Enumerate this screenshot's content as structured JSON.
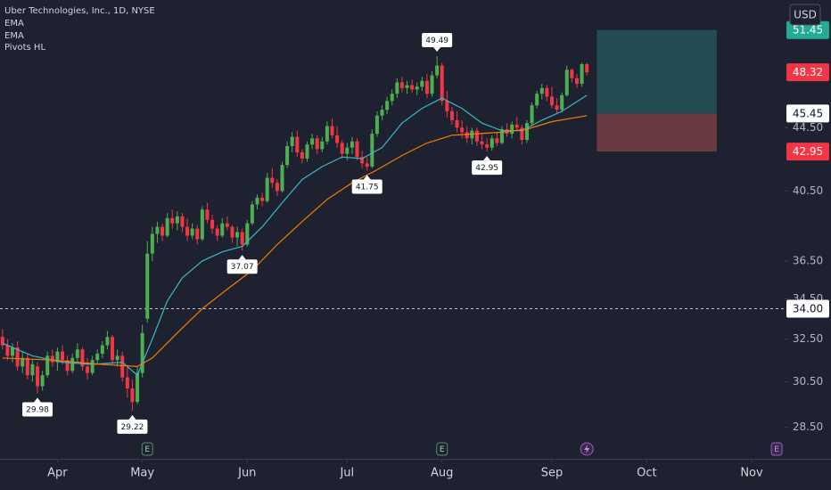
{
  "chart_data": {
    "type": "candlestick",
    "title": "Uber Technologies, Inc., 1D, NYSE",
    "currency": "USD",
    "log_scale": true,
    "grid": false,
    "ylim": [
      27.2,
      53.8
    ],
    "xlim": [
      -0.5,
      156.6
    ],
    "yticks": [
      {
        "value": 28.5,
        "label": "28.50"
      },
      {
        "value": 30.5,
        "label": "30.50"
      },
      {
        "value": 32.5,
        "label": "32.50"
      },
      {
        "value": 34.5,
        "label": "34.50"
      },
      {
        "value": 36.5,
        "label": "36.50"
      },
      {
        "value": 40.5,
        "label": "40.50"
      },
      {
        "value": 44.5,
        "label": "44.50"
      }
    ],
    "xticks": [
      {
        "value": 11,
        "label": "Apr"
      },
      {
        "value": 28,
        "label": "May"
      },
      {
        "value": 49,
        "label": "Jun"
      },
      {
        "value": 69,
        "label": "Jul"
      },
      {
        "value": 88,
        "label": "Aug"
      },
      {
        "value": 110,
        "label": "Sep"
      },
      {
        "value": 129,
        "label": "Oct"
      },
      {
        "value": 150,
        "label": "Nov"
      }
    ],
    "up_color": "#4caf50",
    "down_color": "#f23645",
    "ohlc": [
      [
        32.6,
        33.0,
        32.0,
        32.2
      ],
      [
        32.2,
        32.5,
        31.5,
        31.7
      ],
      [
        31.7,
        32.3,
        31.4,
        32.1
      ],
      [
        32.1,
        32.4,
        31.0,
        31.2
      ],
      [
        31.2,
        31.9,
        30.9,
        31.6
      ],
      [
        31.6,
        31.8,
        30.6,
        30.8
      ],
      [
        30.8,
        31.5,
        30.5,
        31.3
      ],
      [
        31.2,
        31.4,
        29.98,
        30.3
      ],
      [
        30.3,
        31.0,
        30.1,
        30.8
      ],
      [
        30.8,
        31.9,
        30.7,
        31.7
      ],
      [
        31.7,
        32.0,
        31.2,
        31.4
      ],
      [
        31.4,
        32.1,
        31.0,
        31.9
      ],
      [
        31.9,
        32.2,
        31.3,
        31.5
      ],
      [
        31.5,
        31.7,
        30.8,
        31.0
      ],
      [
        31.0,
        31.8,
        30.9,
        31.6
      ],
      [
        31.6,
        32.3,
        31.4,
        32.0
      ],
      [
        32.0,
        32.1,
        31.0,
        31.2
      ],
      [
        31.2,
        31.6,
        30.6,
        30.9
      ],
      [
        30.9,
        31.7,
        30.8,
        31.5
      ],
      [
        31.5,
        32.0,
        31.3,
        31.8
      ],
      [
        31.8,
        32.4,
        31.6,
        32.2
      ],
      [
        32.2,
        32.9,
        32.0,
        32.6
      ],
      [
        32.6,
        32.7,
        31.3,
        31.5
      ],
      [
        31.5,
        32.0,
        31.2,
        31.7
      ],
      [
        31.7,
        31.9,
        30.5,
        30.7
      ],
      [
        30.7,
        31.2,
        29.8,
        30.2
      ],
      [
        30.2,
        30.6,
        29.22,
        29.6
      ],
      [
        29.6,
        31.2,
        29.5,
        30.9
      ],
      [
        30.9,
        33.2,
        30.7,
        32.8
      ],
      [
        33.5,
        37.6,
        33.3,
        36.9
      ],
      [
        36.9,
        38.4,
        36.5,
        38.0
      ],
      [
        38.0,
        38.7,
        37.5,
        38.4
      ],
      [
        38.4,
        38.6,
        37.6,
        37.9
      ],
      [
        37.9,
        39.2,
        37.8,
        38.9
      ],
      [
        38.9,
        39.4,
        38.3,
        38.6
      ],
      [
        38.6,
        39.3,
        38.2,
        39.0
      ],
      [
        39.0,
        39.2,
        38.1,
        38.4
      ],
      [
        38.4,
        38.9,
        37.6,
        37.9
      ],
      [
        37.9,
        38.6,
        37.7,
        38.3
      ],
      [
        38.3,
        38.5,
        37.4,
        37.7
      ],
      [
        37.7,
        39.6,
        37.6,
        39.4
      ],
      [
        39.4,
        39.8,
        38.6,
        38.8
      ],
      [
        38.8,
        39.1,
        38.0,
        38.3
      ],
      [
        38.3,
        38.5,
        37.6,
        37.9
      ],
      [
        37.9,
        38.9,
        37.8,
        38.6
      ],
      [
        38.6,
        39.0,
        38.2,
        38.4
      ],
      [
        38.4,
        38.5,
        37.5,
        37.8
      ],
      [
        37.8,
        38.4,
        37.3,
        38.1
      ],
      [
        38.1,
        38.3,
        37.07,
        37.4
      ],
      [
        37.4,
        38.8,
        37.3,
        38.6
      ],
      [
        38.6,
        39.9,
        38.5,
        39.7
      ],
      [
        39.7,
        40.3,
        39.4,
        40.1
      ],
      [
        40.1,
        40.4,
        39.6,
        39.9
      ],
      [
        39.9,
        41.6,
        39.8,
        41.3
      ],
      [
        41.3,
        41.9,
        40.7,
        41.0
      ],
      [
        41.0,
        41.2,
        40.2,
        40.5
      ],
      [
        40.5,
        42.3,
        40.4,
        42.1
      ],
      [
        42.1,
        43.6,
        41.9,
        43.3
      ],
      [
        43.3,
        44.2,
        42.9,
        43.9
      ],
      [
        43.9,
        44.3,
        42.6,
        42.9
      ],
      [
        42.9,
        43.1,
        42.2,
        42.5
      ],
      [
        42.5,
        43.6,
        42.3,
        43.4
      ],
      [
        43.4,
        44.1,
        43.1,
        43.8
      ],
      [
        43.8,
        44.0,
        42.8,
        43.1
      ],
      [
        43.1,
        43.9,
        42.9,
        43.6
      ],
      [
        43.6,
        44.9,
        43.4,
        44.6
      ],
      [
        44.6,
        45.1,
        43.8,
        44.0
      ],
      [
        44.0,
        44.6,
        43.2,
        43.5
      ],
      [
        43.5,
        43.7,
        42.5,
        42.8
      ],
      [
        42.8,
        43.5,
        42.4,
        43.2
      ],
      [
        43.2,
        43.9,
        42.8,
        43.6
      ],
      [
        43.6,
        43.8,
        42.4,
        42.6
      ],
      [
        42.6,
        43.0,
        41.9,
        42.2
      ],
      [
        42.2,
        42.6,
        41.75,
        42.0
      ],
      [
        42.0,
        44.4,
        41.9,
        44.1
      ],
      [
        44.1,
        45.6,
        43.9,
        45.3
      ],
      [
        45.3,
        46.0,
        45.0,
        45.7
      ],
      [
        45.7,
        46.6,
        45.4,
        46.3
      ],
      [
        46.3,
        47.1,
        46.0,
        46.8
      ],
      [
        46.8,
        47.9,
        46.5,
        47.6
      ],
      [
        47.6,
        48.0,
        46.9,
        47.2
      ],
      [
        47.2,
        47.7,
        46.8,
        47.4
      ],
      [
        47.4,
        47.8,
        46.9,
        47.1
      ],
      [
        47.1,
        47.6,
        46.7,
        47.3
      ],
      [
        47.3,
        48.0,
        47.0,
        47.7
      ],
      [
        47.7,
        48.2,
        46.5,
        46.8
      ],
      [
        46.8,
        48.4,
        46.6,
        48.1
      ],
      [
        48.1,
        49.49,
        47.9,
        48.8
      ],
      [
        48.8,
        49.0,
        46.0,
        46.3
      ],
      [
        46.3,
        47.0,
        45.2,
        45.6
      ],
      [
        45.6,
        45.9,
        44.7,
        45.0
      ],
      [
        45.0,
        45.6,
        44.2,
        44.5
      ],
      [
        44.5,
        45.0,
        43.8,
        44.2
      ],
      [
        44.2,
        44.6,
        43.5,
        43.8
      ],
      [
        43.8,
        44.5,
        43.4,
        44.3
      ],
      [
        44.3,
        44.5,
        43.3,
        43.6
      ],
      [
        43.6,
        44.1,
        43.1,
        43.4
      ],
      [
        43.4,
        43.8,
        42.95,
        43.2
      ],
      [
        43.2,
        44.0,
        43.0,
        43.8
      ],
      [
        43.8,
        44.2,
        43.3,
        43.5
      ],
      [
        43.5,
        44.6,
        43.4,
        44.4
      ],
      [
        44.4,
        44.8,
        43.9,
        44.1
      ],
      [
        44.1,
        44.9,
        43.8,
        44.7
      ],
      [
        44.7,
        45.2,
        44.3,
        44.5
      ],
      [
        44.5,
        44.7,
        43.4,
        43.7
      ],
      [
        43.7,
        45.0,
        43.5,
        44.8
      ],
      [
        44.8,
        46.2,
        44.6,
        46.0
      ],
      [
        46.0,
        47.0,
        45.8,
        46.8
      ],
      [
        46.8,
        47.5,
        46.4,
        47.2
      ],
      [
        47.2,
        47.4,
        46.3,
        46.6
      ],
      [
        46.6,
        47.3,
        45.8,
        46.0
      ],
      [
        46.0,
        46.5,
        45.4,
        45.7
      ],
      [
        45.7,
        46.9,
        45.5,
        46.7
      ],
      [
        46.7,
        48.8,
        46.6,
        48.5
      ],
      [
        48.5,
        48.6,
        47.6,
        47.9
      ],
      [
        47.9,
        48.2,
        47.2,
        47.5
      ],
      [
        47.5,
        49.0,
        47.3,
        48.9
      ],
      [
        48.9,
        49.0,
        48.1,
        48.32
      ]
    ],
    "series": [
      {
        "name": "EMA",
        "color": "#3bb7c4",
        "x": [
          0,
          6,
          12,
          18,
          24,
          27,
          30,
          33,
          36,
          40,
          44,
          48,
          52,
          56,
          60,
          64,
          68,
          72,
          76,
          80,
          84,
          88,
          92,
          96,
          100,
          104,
          108,
          112,
          117
        ],
        "values": [
          32.3,
          31.7,
          31.4,
          31.3,
          31.4,
          30.8,
          32.5,
          34.4,
          35.6,
          36.5,
          37.0,
          37.3,
          38.4,
          39.8,
          41.2,
          42.0,
          42.6,
          42.5,
          43.2,
          44.8,
          45.8,
          46.5,
          45.8,
          44.8,
          44.3,
          44.3,
          45.0,
          45.6,
          46.7
        ]
      },
      {
        "name": "EMA",
        "color": "#f57c00",
        "x": [
          0,
          10,
          20,
          27,
          30,
          35,
          40,
          45,
          50,
          55,
          60,
          65,
          70,
          75,
          80,
          85,
          90,
          95,
          100,
          105,
          110,
          117
        ],
        "values": [
          31.6,
          31.5,
          31.3,
          31.2,
          31.6,
          32.8,
          34.0,
          35.0,
          36.0,
          37.4,
          38.7,
          40.0,
          41.0,
          41.8,
          42.7,
          43.5,
          44.0,
          44.1,
          44.2,
          44.4,
          44.9,
          45.3
        ]
      }
    ],
    "pivots": {
      "name": "Pivots HL",
      "x": [
        7,
        26,
        48,
        73,
        87,
        97
      ],
      "values": [
        29.98,
        29.22,
        37.07,
        41.75,
        49.49,
        42.95
      ]
    },
    "hline": {
      "value": 34,
      "label": "34.00"
    },
    "position": {
      "x": [
        119,
        143
      ],
      "target": 51.45,
      "entry": 45.45,
      "stop": 42.95
    },
    "events": [
      {
        "x": 29,
        "label": "E"
      },
      {
        "x": 88,
        "label": "E"
      },
      {
        "x": 155,
        "label": "E"
      },
      {
        "x": 117
      }
    ]
  }
}
